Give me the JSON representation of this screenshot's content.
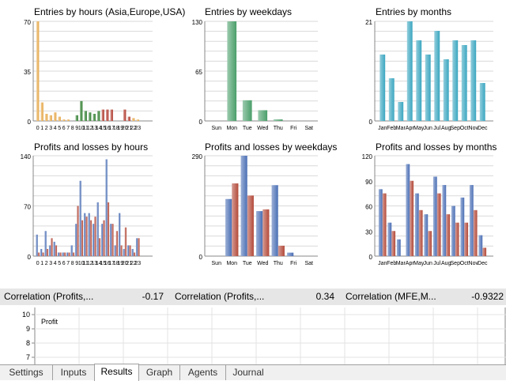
{
  "chart_data": [
    {
      "type": "bar",
      "title": "Entries by hours (Asia,Europe,USA)",
      "ylim": [
        0,
        70
      ],
      "yticks": [
        "0",
        "35",
        "70"
      ],
      "categories": [
        "0",
        "1",
        "2",
        "3",
        "4",
        "5",
        "6",
        "7",
        "8",
        "9",
        "10",
        "11",
        "12",
        "13",
        "14",
        "15",
        "16",
        "17",
        "18",
        "19",
        "20",
        "21",
        "22",
        "23"
      ],
      "values": [
        70,
        13,
        5,
        4,
        6,
        3,
        1,
        1,
        0,
        4,
        14,
        7,
        6,
        5,
        7,
        8,
        8,
        8,
        0,
        0,
        8,
        3,
        2,
        1
      ],
      "category_colors": [
        "#e6a84a",
        "#e6a84a",
        "#e6a84a",
        "#e6a84a",
        "#e6a84a",
        "#e6a84a",
        "#e6a84a",
        "#e6a84a",
        "#e6a84a",
        "#2e7d2e",
        "#2e7d2e",
        "#2e7d2e",
        "#2e7d2e",
        "#2e7d2e",
        "#2e7d2e",
        "#b03a2e",
        "#b03a2e",
        "#b03a2e",
        "#b03a2e",
        "#b03a2e",
        "#b03a2e",
        "#b03a2e",
        "#e6a84a",
        "#e6a84a"
      ]
    },
    {
      "type": "bar",
      "title": "Entries by weekdays",
      "ylim": [
        0,
        130
      ],
      "yticks": [
        "0",
        "65",
        "130"
      ],
      "categories": [
        "Sun",
        "Mon",
        "Tue",
        "Wed",
        "Thu",
        "Fri",
        "Sat"
      ],
      "values": [
        0,
        130,
        27,
        14,
        2,
        0,
        0
      ],
      "colors": {
        "bar": "#4a9e6a"
      }
    },
    {
      "type": "bar",
      "title": "Entries by months",
      "ylim": [
        0,
        21
      ],
      "yticks": [
        "0",
        "21"
      ],
      "categories": [
        "Jan",
        "Feb",
        "Mar",
        "Apr",
        "May",
        "Jun",
        "Jul",
        "Aug",
        "Sep",
        "Oct",
        "Nov",
        "Dec"
      ],
      "values": [
        14,
        9,
        4,
        21,
        17,
        14,
        19,
        13,
        17,
        16,
        17,
        8
      ],
      "colors": {
        "bar": "#3aa6c0"
      }
    },
    {
      "type": "bar",
      "title": "Profits and losses by hours",
      "ylim": [
        0,
        140
      ],
      "yticks": [
        "0",
        "70",
        "140"
      ],
      "categories": [
        "0",
        "1",
        "2",
        "3",
        "4",
        "5",
        "6",
        "7",
        "8",
        "9",
        "10",
        "11",
        "12",
        "13",
        "14",
        "15",
        "16",
        "17",
        "18",
        "19",
        "20",
        "21",
        "22",
        "23"
      ],
      "series": [
        {
          "values": [
            30,
            10,
            35,
            15,
            20,
            5,
            5,
            5,
            15,
            45,
            105,
            60,
            60,
            45,
            75,
            45,
            135,
            45,
            15,
            60,
            10,
            15,
            10,
            25
          ]
        },
        {
          "values": [
            5,
            5,
            10,
            25,
            15,
            5,
            5,
            5,
            5,
            70,
            50,
            55,
            50,
            55,
            25,
            50,
            75,
            45,
            35,
            15,
            40,
            15,
            5,
            25
          ]
        }
      ],
      "colors": {
        "profit": "#4b6fb5",
        "loss": "#b34a3a"
      }
    },
    {
      "type": "bar",
      "title": "Profits and losses by weekdays",
      "ylim": [
        0,
        290
      ],
      "yticks": [
        "0",
        "290"
      ],
      "categories": [
        "Sun",
        "Mon",
        "Tue",
        "Wed",
        "Thu",
        "Fri",
        "Sat"
      ],
      "series": [
        {
          "values": [
            0,
            165,
            290,
            130,
            205,
            10,
            0
          ]
        },
        {
          "values": [
            0,
            210,
            175,
            135,
            30,
            0,
            0
          ]
        }
      ],
      "colors": {
        "profit": "#4b6fb5",
        "loss": "#b34a3a"
      }
    },
    {
      "type": "bar",
      "title": "Profits and losses by months",
      "ylim": [
        0,
        120
      ],
      "yticks": [
        "0",
        "30",
        "60",
        "90",
        "120"
      ],
      "categories": [
        "Jan",
        "Feb",
        "Mar",
        "Apr",
        "May",
        "Jun",
        "Jul",
        "Aug",
        "Sep",
        "Oct",
        "Nov",
        "Dec"
      ],
      "series": [
        {
          "values": [
            80,
            40,
            20,
            110,
            75,
            50,
            95,
            85,
            60,
            70,
            85,
            25
          ]
        },
        {
          "values": [
            75,
            30,
            0,
            90,
            55,
            30,
            75,
            50,
            40,
            40,
            55,
            10
          ]
        }
      ],
      "colors": {
        "profit": "#4b6fb5",
        "loss": "#b34a3a"
      }
    },
    {
      "type": "line",
      "title": "",
      "yticks": [
        "10",
        "9",
        "8",
        "7"
      ],
      "legend": [
        "Profit"
      ]
    }
  ],
  "correlations": [
    {
      "label": "Correlation (Profits,...",
      "value": "-0.17"
    },
    {
      "label": "Correlation (Profits,...",
      "value": "0.34"
    },
    {
      "label": "Correlation (MFE,M...",
      "value": "-0.9322"
    }
  ],
  "tabs": [
    "Settings",
    "Inputs",
    "Results",
    "Graph",
    "Agents",
    "Journal"
  ],
  "active_tab": "Results"
}
